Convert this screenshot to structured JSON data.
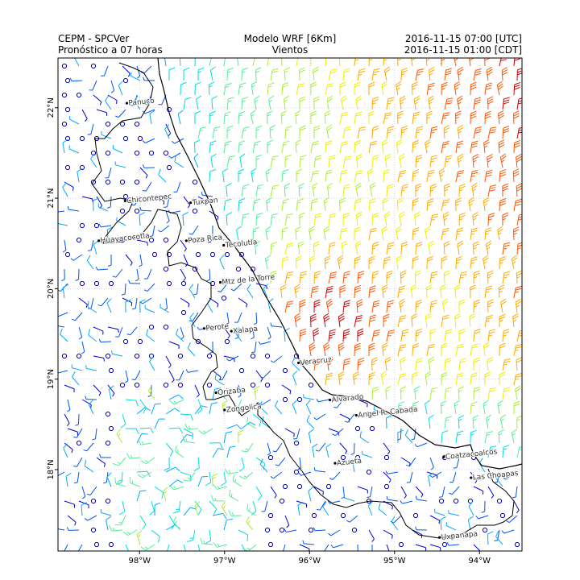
{
  "header": {
    "left_line1": "CEPM - SPCVer",
    "left_line2": "Pronóstico a 07 horas",
    "center_line1": "Modelo WRF [6Km]",
    "center_line2": "Vientos",
    "right_line1": "2016-11-15 07:00 [UTC]",
    "right_line2": "2016-11-15 01:00 [CDT]"
  },
  "map": {
    "lon_range": [
      -98.96,
      -93.5
    ],
    "lat_range": [
      17.1,
      22.55
    ],
    "lon_ticks": [
      {
        "value": -98,
        "label": "98°W"
      },
      {
        "value": -97,
        "label": "97°W"
      },
      {
        "value": -96,
        "label": "96°W"
      },
      {
        "value": -95,
        "label": "95°W"
      },
      {
        "value": -94,
        "label": "94°W"
      }
    ],
    "lat_ticks": [
      {
        "value": 18,
        "label": "18°N"
      },
      {
        "value": 19,
        "label": "19°N"
      },
      {
        "value": 20,
        "label": "20°N"
      },
      {
        "value": 21,
        "label": "21°N"
      },
      {
        "value": 22,
        "label": "22°N"
      }
    ],
    "grid": true,
    "cities": [
      {
        "name": "Panuco",
        "lon": -98.15,
        "lat": 22.05
      },
      {
        "name": "Chicontepec",
        "lon": -98.17,
        "lat": 20.97
      },
      {
        "name": "Tuxpan",
        "lon": -97.4,
        "lat": 20.95
      },
      {
        "name": "Huayacocotla",
        "lon": -98.48,
        "lat": 20.53
      },
      {
        "name": "Poza Rica",
        "lon": -97.45,
        "lat": 20.53
      },
      {
        "name": "Tecolutla",
        "lon": -97.01,
        "lat": 20.48
      },
      {
        "name": "Mtz de la Torre",
        "lon": -97.05,
        "lat": 20.07
      },
      {
        "name": "Perote",
        "lon": -97.24,
        "lat": 19.56
      },
      {
        "name": "Xalapa",
        "lon": -96.92,
        "lat": 19.53
      },
      {
        "name": "Veracruz",
        "lon": -96.13,
        "lat": 19.18
      },
      {
        "name": "Orizaba",
        "lon": -97.1,
        "lat": 18.85
      },
      {
        "name": "Alvarado",
        "lon": -95.76,
        "lat": 18.77
      },
      {
        "name": "Zongolica",
        "lon": -97.0,
        "lat": 18.66
      },
      {
        "name": "Angel R. Cabada",
        "lon": -95.45,
        "lat": 18.6
      },
      {
        "name": "Azueta",
        "lon": -95.7,
        "lat": 18.07
      },
      {
        "name": "Coatzacoalcos",
        "lon": -94.42,
        "lat": 18.14
      },
      {
        "name": "Las Choapas",
        "lon": -94.1,
        "lat": 17.91
      },
      {
        "name": "Uxpanapa",
        "lon": -94.47,
        "lat": 17.25
      }
    ]
  }
}
